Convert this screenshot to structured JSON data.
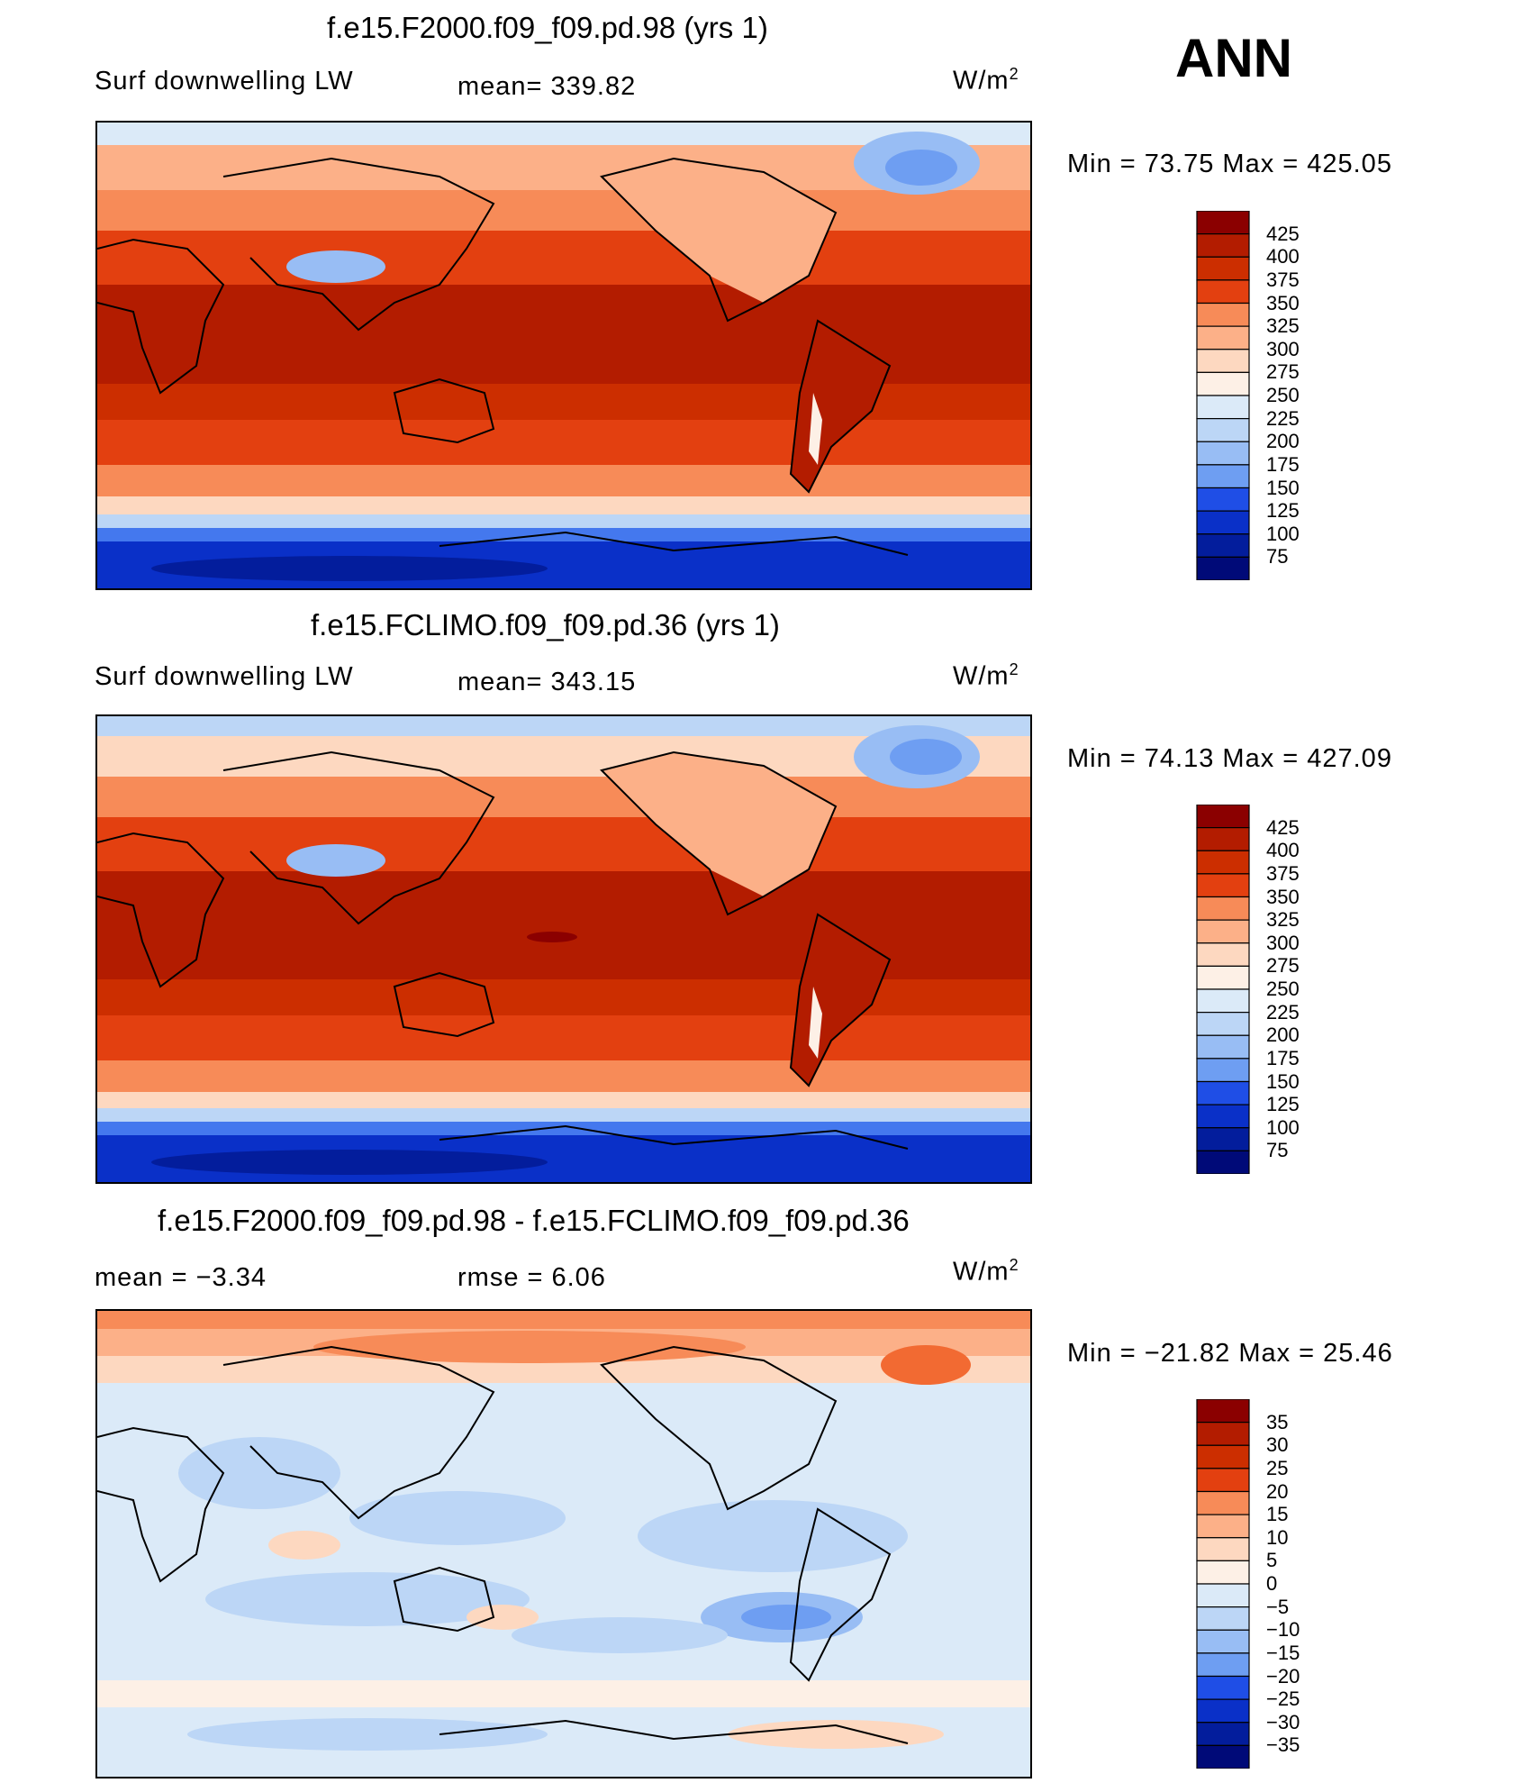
{
  "season": "ANN",
  "units": {
    "base": "W/m",
    "exp": "2"
  },
  "panels": [
    {
      "title": "f.e15.F2000.f09_f09.pd.98 (yrs 1)",
      "variable": "Surf downwelling LW",
      "stat1": "mean=  339.82",
      "minmax": "Min =   73.75 Max = 425.05"
    },
    {
      "title": "f.e15.FCLIMO.f09_f09.pd.36 (yrs 1)",
      "variable": "Surf downwelling LW",
      "stat1": "mean=  343.15",
      "minmax": "Min =   74.13 Max = 427.09"
    },
    {
      "title": "f.e15.F2000.f09_f09.pd.98 - f.e15.FCLIMO.f09_f09.pd.36",
      "variable": "mean =    −3.34",
      "stat1": "rmse =     6.06",
      "minmax": "Min = −21.82 Max =   25.46"
    }
  ],
  "chart_data": [
    {
      "type": "heatmap",
      "title": "f.e15.F2000.f09_f09.pd.98 (yrs 1)",
      "variable": "Surf downwelling LW",
      "units": "W/m2",
      "mean": 339.82,
      "min": 73.75,
      "max": 425.05,
      "levels": [
        75,
        100,
        125,
        150,
        175,
        200,
        225,
        250,
        275,
        300,
        325,
        350,
        375,
        400,
        425
      ],
      "colorbar_labels": [
        "425",
        "400",
        "375",
        "350",
        "325",
        "300",
        "275",
        "250",
        "225",
        "200",
        "175",
        "150",
        "125",
        "100",
        "75"
      ]
    },
    {
      "type": "heatmap",
      "title": "f.e15.FCLIMO.f09_f09.pd.36 (yrs 1)",
      "variable": "Surf downwelling LW",
      "units": "W/m2",
      "mean": 343.15,
      "min": 74.13,
      "max": 427.09,
      "levels": [
        75,
        100,
        125,
        150,
        175,
        200,
        225,
        250,
        275,
        300,
        325,
        350,
        375,
        400,
        425
      ],
      "colorbar_labels": [
        "425",
        "400",
        "375",
        "350",
        "325",
        "300",
        "275",
        "250",
        "225",
        "200",
        "175",
        "150",
        "125",
        "100",
        "75"
      ]
    },
    {
      "type": "heatmap",
      "title": "f.e15.F2000.f09_f09.pd.98 - f.e15.FCLIMO.f09_f09.pd.36",
      "units": "W/m2",
      "mean": -3.34,
      "rmse": 6.06,
      "min": -21.82,
      "max": 25.46,
      "levels": [
        -35,
        -30,
        -25,
        -20,
        -15,
        -10,
        -5,
        0,
        5,
        10,
        15,
        20,
        25,
        30,
        35
      ],
      "colorbar_labels": [
        "35",
        "30",
        "25",
        "20",
        "15",
        "10",
        "5",
        "0",
        "−5",
        "−10",
        "−15",
        "−20",
        "−25",
        "−30",
        "−35"
      ]
    }
  ],
  "colors": {
    "scale": [
      "#8b0000",
      "#b31c00",
      "#cc2e00",
      "#e34010",
      "#f26a32",
      "#f78b58",
      "#fcb088",
      "#fdd8c0",
      "#fdf0e6",
      "#dbeaf8",
      "#bcd6f6",
      "#98bdf4",
      "#6e9ef2",
      "#4478ee",
      "#1f4ee6",
      "#0a30c8",
      "#031d9c",
      "#000a78"
    ]
  }
}
